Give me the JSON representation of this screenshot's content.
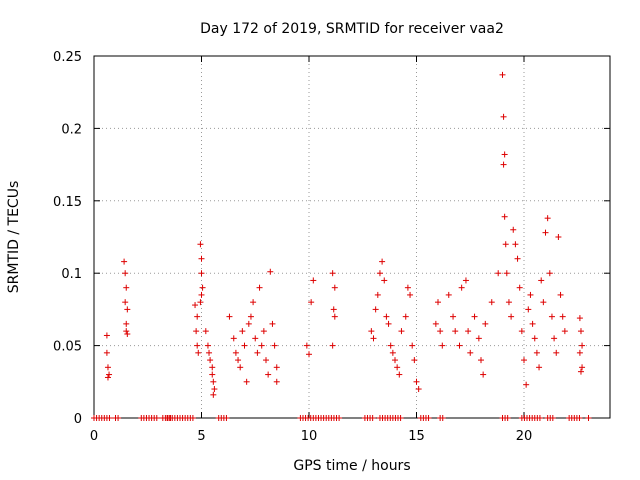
{
  "chart_data": {
    "type": "scatter",
    "title": "Day 172 of 2019, SRMTID for receiver vaa2",
    "xlabel": "GPS time / hours",
    "ylabel": "SRMTID / TECUs",
    "xlim": [
      0,
      24
    ],
    "ylim": [
      0,
      0.25
    ],
    "xticks": [
      0,
      5,
      10,
      15,
      20
    ],
    "xtick_labels": [
      "0",
      "5",
      "10",
      "15",
      "20"
    ],
    "yticks": [
      0,
      0.05,
      0.1,
      0.15,
      0.2,
      0.25
    ],
    "ytick_labels": [
      "0",
      "0.05",
      "0.1",
      "0.15",
      "0.2",
      "0.25"
    ],
    "grid": true,
    "marker": "+",
    "color": "#dd0000",
    "series": [
      {
        "name": "SRMTID",
        "points": [
          [
            0.6,
            0.057
          ],
          [
            0.6,
            0.045
          ],
          [
            0.65,
            0.035
          ],
          [
            0.7,
            0.03
          ],
          [
            0.65,
            0.028
          ],
          [
            1.4,
            0.108
          ],
          [
            1.45,
            0.1
          ],
          [
            1.5,
            0.09
          ],
          [
            1.45,
            0.08
          ],
          [
            1.55,
            0.075
          ],
          [
            1.5,
            0.065
          ],
          [
            1.55,
            0.058
          ],
          [
            1.5,
            0.06
          ],
          [
            4.7,
            0.078
          ],
          [
            4.8,
            0.07
          ],
          [
            4.75,
            0.06
          ],
          [
            4.8,
            0.05
          ],
          [
            4.85,
            0.045
          ],
          [
            4.95,
            0.12
          ],
          [
            5.0,
            0.11
          ],
          [
            5.0,
            0.1
          ],
          [
            5.05,
            0.09
          ],
          [
            5.0,
            0.085
          ],
          [
            4.95,
            0.08
          ],
          [
            5.2,
            0.06
          ],
          [
            5.3,
            0.05
          ],
          [
            5.35,
            0.045
          ],
          [
            5.4,
            0.04
          ],
          [
            5.5,
            0.035
          ],
          [
            5.5,
            0.03
          ],
          [
            5.55,
            0.025
          ],
          [
            5.6,
            0.02
          ],
          [
            5.55,
            0.016
          ],
          [
            6.3,
            0.07
          ],
          [
            6.5,
            0.055
          ],
          [
            6.6,
            0.045
          ],
          [
            6.7,
            0.04
          ],
          [
            6.8,
            0.035
          ],
          [
            6.9,
            0.06
          ],
          [
            7.0,
            0.05
          ],
          [
            7.1,
            0.025
          ],
          [
            7.2,
            0.065
          ],
          [
            7.3,
            0.07
          ],
          [
            7.4,
            0.08
          ],
          [
            7.5,
            0.055
          ],
          [
            7.6,
            0.045
          ],
          [
            7.7,
            0.09
          ],
          [
            7.8,
            0.05
          ],
          [
            7.9,
            0.06
          ],
          [
            8.0,
            0.04
          ],
          [
            8.1,
            0.03
          ],
          [
            8.2,
            0.101
          ],
          [
            8.3,
            0.065
          ],
          [
            8.4,
            0.05
          ],
          [
            8.5,
            0.035
          ],
          [
            8.5,
            0.025
          ],
          [
            9.9,
            0.05
          ],
          [
            10.0,
            0.044
          ],
          [
            10.1,
            0.08
          ],
          [
            10.2,
            0.095
          ],
          [
            11.1,
            0.1
          ],
          [
            11.2,
            0.09
          ],
          [
            11.15,
            0.075
          ],
          [
            11.2,
            0.07
          ],
          [
            11.1,
            0.05
          ],
          [
            12.9,
            0.06
          ],
          [
            13.0,
            0.055
          ],
          [
            13.1,
            0.075
          ],
          [
            13.2,
            0.085
          ],
          [
            13.3,
            0.1
          ],
          [
            13.4,
            0.108
          ],
          [
            13.5,
            0.095
          ],
          [
            13.6,
            0.07
          ],
          [
            13.7,
            0.065
          ],
          [
            13.8,
            0.05
          ],
          [
            13.9,
            0.045
          ],
          [
            14.0,
            0.04
          ],
          [
            14.1,
            0.035
          ],
          [
            14.2,
            0.03
          ],
          [
            14.3,
            0.06
          ],
          [
            14.5,
            0.07
          ],
          [
            14.6,
            0.09
          ],
          [
            14.7,
            0.085
          ],
          [
            14.8,
            0.05
          ],
          [
            14.9,
            0.04
          ],
          [
            15.0,
            0.025
          ],
          [
            15.1,
            0.02
          ],
          [
            15.9,
            0.065
          ],
          [
            16.0,
            0.08
          ],
          [
            16.1,
            0.06
          ],
          [
            16.2,
            0.05
          ],
          [
            16.5,
            0.085
          ],
          [
            16.7,
            0.07
          ],
          [
            16.8,
            0.06
          ],
          [
            17.0,
            0.05
          ],
          [
            17.1,
            0.09
          ],
          [
            17.3,
            0.095
          ],
          [
            17.4,
            0.06
          ],
          [
            17.5,
            0.045
          ],
          [
            17.7,
            0.07
          ],
          [
            17.9,
            0.055
          ],
          [
            18.0,
            0.04
          ],
          [
            18.1,
            0.03
          ],
          [
            18.2,
            0.065
          ],
          [
            18.5,
            0.08
          ],
          [
            18.8,
            0.1
          ],
          [
            19.0,
            0.237
          ],
          [
            19.05,
            0.208
          ],
          [
            19.1,
            0.182
          ],
          [
            19.05,
            0.175
          ],
          [
            19.1,
            0.139
          ],
          [
            19.15,
            0.12
          ],
          [
            19.2,
            0.1
          ],
          [
            19.3,
            0.08
          ],
          [
            19.4,
            0.07
          ],
          [
            19.5,
            0.13
          ],
          [
            19.6,
            0.12
          ],
          [
            19.7,
            0.11
          ],
          [
            19.8,
            0.09
          ],
          [
            19.9,
            0.06
          ],
          [
            20.0,
            0.04
          ],
          [
            20.1,
            0.023
          ],
          [
            20.2,
            0.075
          ],
          [
            20.3,
            0.085
          ],
          [
            20.4,
            0.065
          ],
          [
            20.5,
            0.055
          ],
          [
            20.6,
            0.045
          ],
          [
            20.7,
            0.035
          ],
          [
            20.8,
            0.095
          ],
          [
            20.9,
            0.08
          ],
          [
            21.0,
            0.128
          ],
          [
            21.1,
            0.138
          ],
          [
            21.2,
            0.1
          ],
          [
            21.3,
            0.07
          ],
          [
            21.4,
            0.055
          ],
          [
            21.5,
            0.045
          ],
          [
            21.6,
            0.125
          ],
          [
            21.7,
            0.085
          ],
          [
            21.8,
            0.07
          ],
          [
            21.9,
            0.06
          ],
          [
            22.6,
            0.069
          ],
          [
            22.65,
            0.06
          ],
          [
            22.7,
            0.05
          ],
          [
            22.6,
            0.045
          ],
          [
            22.7,
            0.035
          ],
          [
            22.65,
            0.032
          ]
        ]
      }
    ],
    "zero_band": [
      [
        0.0,
        0.8
      ],
      [
        1.0,
        1.2
      ],
      [
        2.2,
        3.0
      ],
      [
        3.2,
        3.6
      ],
      [
        3.4,
        4.7
      ],
      [
        5.8,
        6.2
      ],
      [
        9.6,
        11.4
      ],
      [
        12.6,
        13.0
      ],
      [
        13.3,
        14.3
      ],
      [
        15.2,
        15.6
      ],
      [
        16.1,
        16.3
      ],
      [
        19.0,
        19.3
      ],
      [
        19.9,
        20.8
      ],
      [
        21.1,
        21.4
      ],
      [
        22.1,
        22.6
      ],
      [
        23.0,
        23.1
      ]
    ]
  }
}
